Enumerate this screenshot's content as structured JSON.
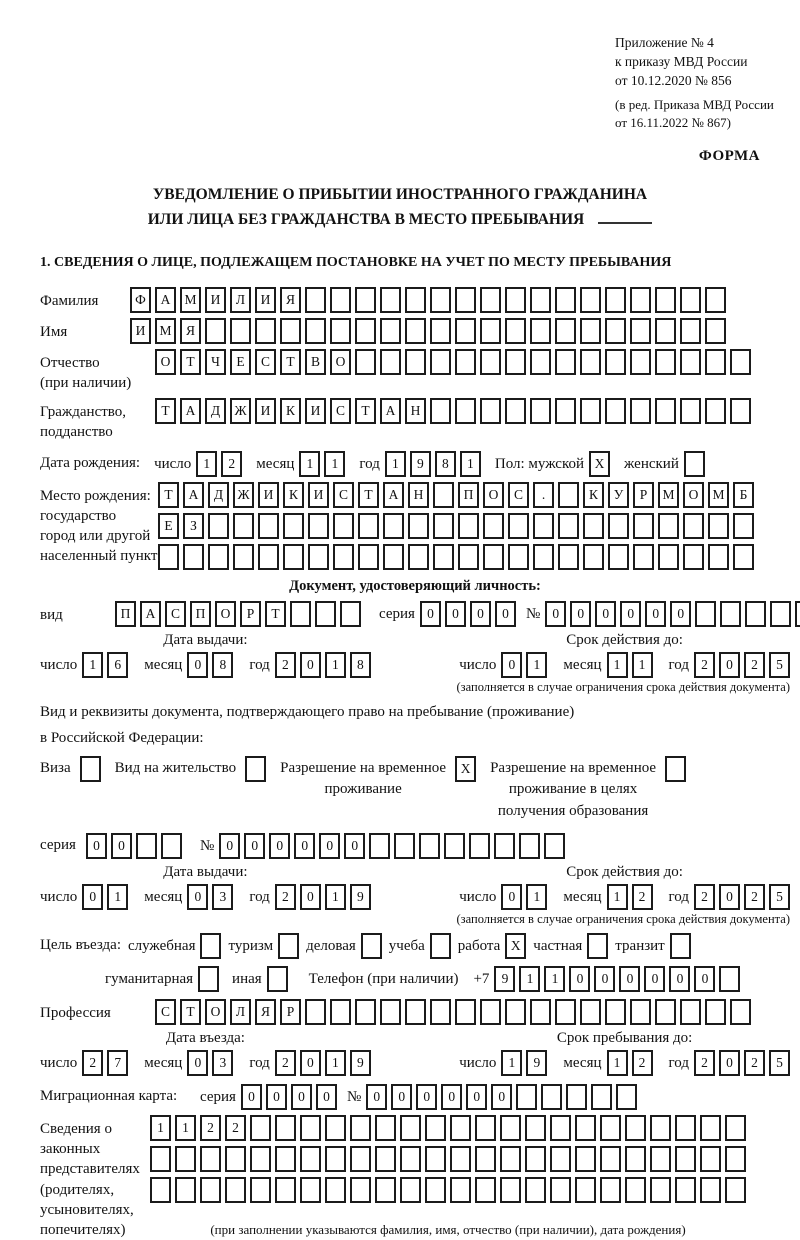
{
  "header": {
    "line1": "Приложение № 4",
    "line2": "к приказу МВД России",
    "line3": "от 10.12.2020 № 856",
    "line4": "(в ред. Приказа МВД России",
    "line5": "от 16.11.2022 № 867)",
    "forma": "ФОРМА"
  },
  "title": {
    "line1": "УВЕДОМЛЕНИЕ О ПРИБЫТИИ ИНОСТРАННОГО ГРАЖДАНИНА",
    "line2": "ИЛИ ЛИЦА БЕЗ ГРАЖДАНСТВА В МЕСТО ПРЕБЫВАНИЯ"
  },
  "section1_heading": "1. СВЕДЕНИЯ О ЛИЦЕ, ПОДЛЕЖАЩЕМ ПОСТАНОВКЕ НА УЧЕТ ПО МЕСТУ ПРЕБЫВАНИЯ",
  "labels": {
    "surname": "Фамилия",
    "given_name": "Имя",
    "patronymic_1": "Отчество",
    "patronymic_2": "(при наличии)",
    "citizenship_1": "Гражданство,",
    "citizenship_2": "подданство",
    "birth_date": "Дата рождения:",
    "day": "число",
    "month": "месяц",
    "year": "год",
    "sex": "Пол: мужской",
    "female": "женский",
    "birthplace_1": "Место рождения:",
    "birthplace_2": "государство",
    "birthplace_3": "город или другой",
    "birthplace_4": "населенный пункт",
    "identity_doc_heading": "Документ, удостоверяющий личность:",
    "kind": "вид",
    "series": "серия",
    "num": "№",
    "issue_date": "Дата выдачи:",
    "valid_until": "Срок действия до:",
    "restriction_note": "(заполняется в случае ограничения срока действия документа)",
    "residence_doc_1": "Вид и реквизиты документа, подтверждающего право на пребывание (проживание)",
    "residence_doc_2": "в Российской Федерации:",
    "visa": "Виза",
    "residence_permit": "Вид на жительство",
    "temp_res_1": "Разрешение на временное",
    "temp_res_2": "проживание",
    "temp_edu_1": "Разрешение на временное",
    "temp_edu_2": "проживание в целях",
    "temp_edu_3": "получения образования",
    "purpose": "Цель въезда:",
    "p_official": "служебная",
    "p_tourism": "туризм",
    "p_business": "деловая",
    "p_study": "учеба",
    "p_work": "работа",
    "p_private": "частная",
    "p_transit": "транзит",
    "p_humanitarian": "гуманитарная",
    "p_other": "иная",
    "phone": "Телефон (при наличии)",
    "phone_prefix": "+7",
    "profession": "Профессия",
    "entry_date": "Дата въезда:",
    "stay_until": "Срок пребывания до:",
    "migration_card": "Миграционная карта:",
    "rep_1": "Сведения о",
    "rep_2": "законных",
    "rep_3": "представителях",
    "rep_4": "(родителях,",
    "rep_5": "усыновителях,",
    "rep_6": "попечителях)",
    "rep_note": "(при заполнении указываются фамилия, имя, отчество (при наличии), дата рождения)"
  },
  "fields": {
    "surname": [
      "Ф",
      "А",
      "М",
      "И",
      "Л",
      "И",
      "Я",
      "",
      "",
      "",
      "",
      "",
      "",
      "",
      "",
      "",
      "",
      "",
      "",
      "",
      "",
      "",
      "",
      ""
    ],
    "given_name": [
      "И",
      "М",
      "Я",
      "",
      "",
      "",
      "",
      "",
      "",
      "",
      "",
      "",
      "",
      "",
      "",
      "",
      "",
      "",
      "",
      "",
      "",
      "",
      "",
      ""
    ],
    "patronymic": [
      "О",
      "Т",
      "Ч",
      "Е",
      "С",
      "Т",
      "В",
      "О",
      "",
      "",
      "",
      "",
      "",
      "",
      "",
      "",
      "",
      "",
      "",
      "",
      "",
      "",
      "",
      ""
    ],
    "citizenship": [
      "Т",
      "А",
      "Д",
      "Ж",
      "И",
      "К",
      "И",
      "С",
      "Т",
      "А",
      "Н",
      "",
      "",
      "",
      "",
      "",
      "",
      "",
      "",
      "",
      "",
      "",
      "",
      ""
    ],
    "birth_day": [
      "1",
      "2"
    ],
    "birth_month": [
      "1",
      "1"
    ],
    "birth_year": [
      "1",
      "9",
      "8",
      "1"
    ],
    "sex_male": [
      "X"
    ],
    "sex_female": [
      ""
    ],
    "birthplace_r1": [
      "Т",
      "А",
      "Д",
      "Ж",
      "И",
      "К",
      "И",
      "С",
      "Т",
      "А",
      "Н",
      "",
      "П",
      "О",
      "С",
      ".",
      "",
      "К",
      "У",
      "Р",
      "М",
      "О",
      "М",
      "Б"
    ],
    "birthplace_r2": [
      "Е",
      "З",
      "",
      "",
      "",
      "",
      "",
      "",
      "",
      "",
      "",
      "",
      "",
      "",
      "",
      "",
      "",
      "",
      "",
      "",
      "",
      "",
      "",
      ""
    ],
    "birthplace_r3": [
      "",
      "",
      "",
      "",
      "",
      "",
      "",
      "",
      "",
      "",
      "",
      "",
      "",
      "",
      "",
      "",
      "",
      "",
      "",
      "",
      "",
      "",
      "",
      ""
    ],
    "id_kind": [
      "П",
      "А",
      "С",
      "П",
      "О",
      "Р",
      "Т",
      "",
      "",
      ""
    ],
    "id_series": [
      "0",
      "0",
      "0",
      "0"
    ],
    "id_number": [
      "0",
      "0",
      "0",
      "0",
      "0",
      "0",
      "",
      "",
      "",
      "",
      ""
    ],
    "id_issue_day": [
      "1",
      "6"
    ],
    "id_issue_month": [
      "0",
      "8"
    ],
    "id_issue_year": [
      "2",
      "0",
      "1",
      "8"
    ],
    "id_valid_day": [
      "0",
      "1"
    ],
    "id_valid_month": [
      "1",
      "1"
    ],
    "id_valid_year": [
      "2",
      "0",
      "2",
      "5"
    ],
    "res_visa": [
      ""
    ],
    "res_permit": [
      ""
    ],
    "res_temp": [
      "X"
    ],
    "res_temp_edu": [
      ""
    ],
    "res_series": [
      "0",
      "0",
      "",
      ""
    ],
    "res_number": [
      "0",
      "0",
      "0",
      "0",
      "0",
      "0",
      "",
      "",
      "",
      "",
      "",
      "",
      "",
      ""
    ],
    "res_issue_day": [
      "0",
      "1"
    ],
    "res_issue_month": [
      "0",
      "3"
    ],
    "res_issue_year": [
      "2",
      "0",
      "1",
      "9"
    ],
    "res_valid_day": [
      "0",
      "1"
    ],
    "res_valid_month": [
      "1",
      "2"
    ],
    "res_valid_year": [
      "2",
      "0",
      "2",
      "5"
    ],
    "p_official_cb": [
      ""
    ],
    "p_tourism_cb": [
      ""
    ],
    "p_business_cb": [
      ""
    ],
    "p_study_cb": [
      ""
    ],
    "p_work_cb": [
      "X"
    ],
    "p_private_cb": [
      ""
    ],
    "p_transit_cb": [
      ""
    ],
    "p_humanitarian_cb": [
      ""
    ],
    "p_other_cb": [
      ""
    ],
    "phone": [
      "9",
      "1",
      "1",
      "0",
      "0",
      "0",
      "0",
      "0",
      "0",
      ""
    ],
    "profession": [
      "С",
      "Т",
      "О",
      "Л",
      "Я",
      "Р",
      "",
      "",
      "",
      "",
      "",
      "",
      "",
      "",
      "",
      "",
      "",
      "",
      "",
      "",
      "",
      "",
      "",
      ""
    ],
    "entry_day": [
      "2",
      "7"
    ],
    "entry_month": [
      "0",
      "3"
    ],
    "entry_year": [
      "2",
      "0",
      "1",
      "9"
    ],
    "stay_day": [
      "1",
      "9"
    ],
    "stay_month": [
      "1",
      "2"
    ],
    "stay_year": [
      "2",
      "0",
      "2",
      "5"
    ],
    "mc_series": [
      "0",
      "0",
      "0",
      "0"
    ],
    "mc_number": [
      "0",
      "0",
      "0",
      "0",
      "0",
      "0",
      "",
      "",
      "",
      "",
      ""
    ],
    "rep_r1": [
      "1",
      "1",
      "2",
      "2",
      "",
      "",
      "",
      "",
      "",
      "",
      "",
      "",
      "",
      "",
      "",
      "",
      "",
      "",
      "",
      "",
      "",
      "",
      "",
      ""
    ],
    "rep_r2": [
      "",
      "",
      "",
      "",
      "",
      "",
      "",
      "",
      "",
      "",
      "",
      "",
      "",
      "",
      "",
      "",
      "",
      "",
      "",
      "",
      "",
      "",
      "",
      ""
    ],
    "rep_r3": [
      "",
      "",
      "",
      "",
      "",
      "",
      "",
      "",
      "",
      "",
      "",
      "",
      "",
      "",
      "",
      "",
      "",
      "",
      "",
      "",
      "",
      "",
      "",
      ""
    ]
  }
}
